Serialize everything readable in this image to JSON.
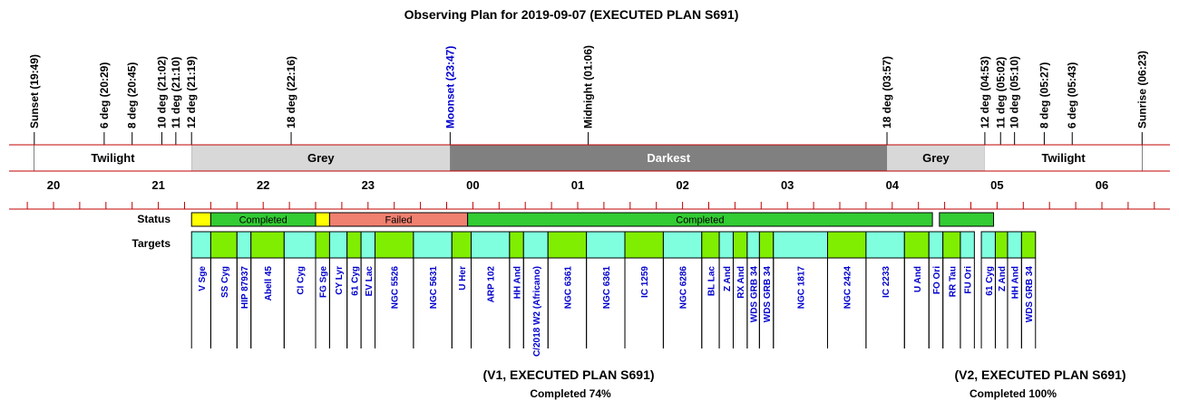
{
  "chart_data": {
    "type": "timeline",
    "title": "Observing Plan for 2019-09-07 (EXECUTED PLAN S691)",
    "colors": {
      "axis_red": "#c00000",
      "twilight": "#ffffff",
      "grey": "#d8d8d8",
      "darkest": "#808080",
      "completed": "#33cc33",
      "failed": "#f08070",
      "yellow": "#ffff00",
      "target_cyan": "#80ffdf",
      "target_green": "#80ee00",
      "target_label": "#0000cc",
      "moon_label": "#0000cc"
    },
    "events": [
      {
        "label": "Sunset (19:49)",
        "time": "19:49"
      },
      {
        "label": "6 deg (20:29)",
        "time": "20:29"
      },
      {
        "label": "8 deg (20:45)",
        "time": "20:45"
      },
      {
        "label": "10 deg (21:02)",
        "time": "21:02"
      },
      {
        "label": "11 deg (21:10)",
        "time": "21:10"
      },
      {
        "label": "12 deg (21:19)",
        "time": "21:19"
      },
      {
        "label": "18 deg (22:16)",
        "time": "22:16"
      },
      {
        "label": "Moonset (23:47)",
        "time": "23:47",
        "moon": true
      },
      {
        "label": "Midnight (01:06)",
        "time": "01:06"
      },
      {
        "label": "18 deg (03:57)",
        "time": "03:57"
      },
      {
        "label": "12 deg (04:53)",
        "time": "04:53"
      },
      {
        "label": "11 deg (05:02)",
        "time": "05:02"
      },
      {
        "label": "10 deg (05:10)",
        "time": "05:10"
      },
      {
        "label": "8 deg (05:27)",
        "time": "05:27"
      },
      {
        "label": "6 deg (05:43)",
        "time": "05:43"
      },
      {
        "label": "Sunrise (06:23)",
        "time": "06:23"
      }
    ],
    "periods": [
      {
        "label": "Twilight",
        "start": "19:49",
        "end": "21:19",
        "kind": "twilight"
      },
      {
        "label": "Grey",
        "start": "21:19",
        "end": "23:47",
        "kind": "grey"
      },
      {
        "label": "Darkest",
        "start": "23:47",
        "end": "03:57",
        "kind": "darkest"
      },
      {
        "label": "Grey",
        "start": "03:57",
        "end": "04:53",
        "kind": "grey"
      },
      {
        "label": "Twilight",
        "start": "04:53",
        "end": "06:23",
        "kind": "twilight"
      }
    ],
    "hour_labels": [
      "20",
      "21",
      "22",
      "23",
      "00",
      "01",
      "02",
      "03",
      "04",
      "05",
      "06"
    ],
    "status_label": "Status",
    "targets_label": "Targets",
    "status": [
      {
        "start": "21:19",
        "end": "21:30",
        "label": "",
        "kind": "yellow"
      },
      {
        "start": "21:30",
        "end": "22:30",
        "label": "Completed",
        "kind": "completed"
      },
      {
        "start": "22:30",
        "end": "22:38",
        "label": "",
        "kind": "yellow"
      },
      {
        "start": "22:38",
        "end": "23:57",
        "label": "Failed",
        "kind": "failed"
      },
      {
        "start": "23:57",
        "end": "04:23",
        "label": "Completed",
        "kind": "completed"
      },
      {
        "start": "04:27",
        "end": "04:58",
        "label": "",
        "kind": "completed"
      }
    ],
    "targets": [
      {
        "name": "V Sge",
        "start": "21:19",
        "end": "21:30",
        "color": "cyan"
      },
      {
        "name": "SS Cyg",
        "start": "21:30",
        "end": "21:45",
        "color": "green"
      },
      {
        "name": "HIP 87937",
        "start": "21:45",
        "end": "21:53",
        "color": "cyan"
      },
      {
        "name": "Abell 45",
        "start": "21:53",
        "end": "22:12",
        "color": "green"
      },
      {
        "name": "CI Cyg",
        "start": "22:12",
        "end": "22:30",
        "color": "cyan"
      },
      {
        "name": "FG Sge",
        "start": "22:30",
        "end": "22:38",
        "color": "green"
      },
      {
        "name": "CY Lyr",
        "start": "22:38",
        "end": "22:48",
        "color": "cyan"
      },
      {
        "name": "61 Cyg",
        "start": "22:48",
        "end": "22:56",
        "color": "green"
      },
      {
        "name": "EV Lac",
        "start": "22:56",
        "end": "23:04",
        "color": "cyan"
      },
      {
        "name": "NGC 5526",
        "start": "23:04",
        "end": "23:26",
        "color": "green"
      },
      {
        "name": "NGC 5631",
        "start": "23:26",
        "end": "23:48",
        "color": "cyan"
      },
      {
        "name": "U Her",
        "start": "23:48",
        "end": "23:59",
        "color": "green"
      },
      {
        "name": "ARP 102",
        "start": "23:59",
        "end": "00:21",
        "color": "cyan"
      },
      {
        "name": "HH And",
        "start": "00:21",
        "end": "00:29",
        "color": "green"
      },
      {
        "name": "C/2018 W2 (Africano)",
        "start": "00:29",
        "end": "00:43",
        "color": "cyan"
      },
      {
        "name": "NGC 6361",
        "start": "00:43",
        "end": "01:05",
        "color": "green"
      },
      {
        "name": "NGC 6361",
        "start": "01:05",
        "end": "01:27",
        "color": "cyan"
      },
      {
        "name": "IC 1259",
        "start": "01:27",
        "end": "01:49",
        "color": "green"
      },
      {
        "name": "NGC 6286",
        "start": "01:49",
        "end": "02:11",
        "color": "cyan"
      },
      {
        "name": "BL Lac",
        "start": "02:11",
        "end": "02:21",
        "color": "green"
      },
      {
        "name": "Z And",
        "start": "02:21",
        "end": "02:29",
        "color": "cyan"
      },
      {
        "name": "RX And",
        "start": "02:29",
        "end": "02:37",
        "color": "green"
      },
      {
        "name": "WDS GRB 34",
        "start": "02:37",
        "end": "02:44",
        "color": "cyan"
      },
      {
        "name": "WDS GRB 34",
        "start": "02:44",
        "end": "02:52",
        "color": "green"
      },
      {
        "name": "NGC 1817",
        "start": "02:52",
        "end": "03:23",
        "color": "cyan"
      },
      {
        "name": "NGC 2424",
        "start": "03:23",
        "end": "03:45",
        "color": "green"
      },
      {
        "name": "IC 2233",
        "start": "03:45",
        "end": "04:07",
        "color": "cyan"
      },
      {
        "name": "U And",
        "start": "04:07",
        "end": "04:21",
        "color": "green"
      },
      {
        "name": "FO Ori",
        "start": "04:21",
        "end": "04:29",
        "color": "cyan"
      },
      {
        "name": "RR Tau",
        "start": "04:29",
        "end": "04:39",
        "color": "green"
      },
      {
        "name": "FU Ori",
        "start": "04:39",
        "end": "04:47",
        "color": "cyan"
      },
      {
        "name": "61 Cyg",
        "start": "04:51",
        "end": "04:59",
        "color": "cyan"
      },
      {
        "name": "Z And",
        "start": "04:59",
        "end": "05:06",
        "color": "green"
      },
      {
        "name": "HH And",
        "start": "05:06",
        "end": "05:14",
        "color": "cyan"
      },
      {
        "name": "WDS GRB 34",
        "start": "05:14",
        "end": "05:22",
        "color": "green"
      }
    ],
    "plans": [
      {
        "title": "(V1, EXECUTED PLAN S691)",
        "subtitle": "Completed 74%"
      },
      {
        "title": "(V2, EXECUTED PLAN S691)",
        "subtitle": "Completed 100%"
      }
    ]
  }
}
